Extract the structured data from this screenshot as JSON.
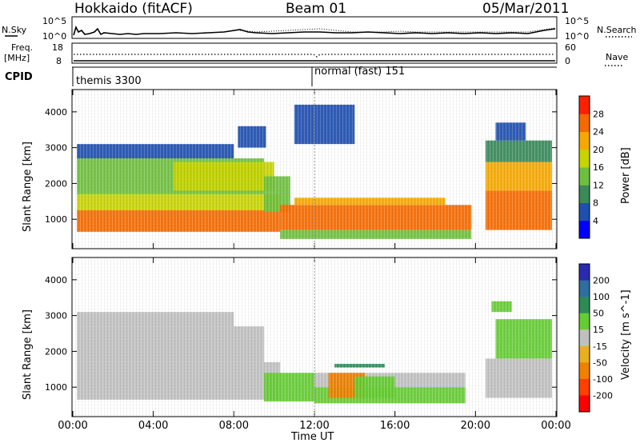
{
  "header": {
    "title": "Hokkaido (fitACF)",
    "beam": "Beam 01",
    "date": "05/Mar/2011"
  },
  "strip_panels": {
    "nsky_label": "N.Sky",
    "nsky_ticks": [
      "10^5",
      "10^0"
    ],
    "nsearch_label": "N.Search",
    "nsearch_ticks": [
      "10^5",
      "10^0"
    ],
    "freq_label_line1": "Freq.",
    "freq_label_line2": "[MHz]",
    "freq_ticks": [
      "18",
      "8"
    ],
    "nave_label": "Nave",
    "nave_ticks": [
      "60",
      "0"
    ],
    "cpid_label": "CPID",
    "cpid_modes": [
      "themis 3300",
      "normal (fast) 151"
    ]
  },
  "colors": {
    "power_scale": [
      "#0000ff",
      "#1f4fb0",
      "#3a8a5a",
      "#6fbf3f",
      "#c7d400",
      "#f5a800",
      "#f56a00",
      "#ff2000"
    ],
    "velocity_scale": [
      "#2a2ab0",
      "#2f6f9f",
      "#2e8b57",
      "#66cc33",
      "#c0c0c0",
      "#e8b020",
      "#f08000",
      "#ff4000",
      "#ff0000"
    ],
    "ground_scatter": "#c0c0c0"
  },
  "chart_data": [
    {
      "type": "heatmap",
      "title": "Power",
      "xlabel": "Time UT",
      "ylabel": "Slant Range [km]",
      "x_ticks": [
        "00:00",
        "04:00",
        "08:00",
        "12:00",
        "16:00",
        "20:00",
        "00:00"
      ],
      "xlim_hours": [
        0,
        24
      ],
      "y_ticks": [
        1000,
        2000,
        3000,
        4000
      ],
      "ylim": [
        200,
        4600
      ],
      "colorbar": {
        "label": "Power [dB]",
        "ticks": [
          4,
          8,
          12,
          16,
          20,
          24,
          28
        ],
        "range": [
          0,
          32
        ]
      },
      "regions": [
        {
          "t0": 0.2,
          "t1": 10.3,
          "r0": 650,
          "r1": 1250,
          "value": 27
        },
        {
          "t0": 0.2,
          "t1": 10.3,
          "r0": 1250,
          "r1": 1700,
          "value": 16
        },
        {
          "t0": 0.2,
          "t1": 9.5,
          "r0": 1700,
          "r1": 2700,
          "value": 12
        },
        {
          "t0": 0.2,
          "t1": 8.0,
          "r0": 2700,
          "r1": 3100,
          "value": 6
        },
        {
          "t0": 5.0,
          "t1": 10.0,
          "r0": 1800,
          "r1": 2600,
          "value": 19
        },
        {
          "t0": 8.2,
          "t1": 9.6,
          "r0": 3000,
          "r1": 3600,
          "value": 5
        },
        {
          "t0": 9.5,
          "t1": 10.8,
          "r0": 1200,
          "r1": 2200,
          "value": 14
        },
        {
          "t0": 10.3,
          "t1": 19.8,
          "r0": 700,
          "r1": 1400,
          "value": 26
        },
        {
          "t0": 11.0,
          "t1": 18.5,
          "r0": 1400,
          "r1": 1600,
          "value": 22
        },
        {
          "t0": 10.3,
          "t1": 19.8,
          "r0": 450,
          "r1": 700,
          "value": 12
        },
        {
          "t0": 20.5,
          "t1": 23.8,
          "r0": 700,
          "r1": 1800,
          "value": 27
        },
        {
          "t0": 20.5,
          "t1": 23.8,
          "r0": 1800,
          "r1": 2600,
          "value": 20
        },
        {
          "t0": 20.5,
          "t1": 23.8,
          "r0": 2600,
          "r1": 3200,
          "value": 10
        },
        {
          "t0": 11.0,
          "t1": 14.0,
          "r0": 3100,
          "r1": 4200,
          "value": 5
        },
        {
          "t0": 21.0,
          "t1": 22.5,
          "r0": 3200,
          "r1": 3700,
          "value": 6
        }
      ]
    },
    {
      "type": "heatmap",
      "title": "Velocity",
      "xlabel": "Time UT",
      "ylabel": "Slant Range [km]",
      "x_ticks": [
        "00:00",
        "04:00",
        "08:00",
        "12:00",
        "16:00",
        "20:00",
        "00:00"
      ],
      "xlim_hours": [
        0,
        24
      ],
      "y_ticks": [
        1000,
        2000,
        3000,
        4000
      ],
      "ylim": [
        200,
        4600
      ],
      "colorbar": {
        "label": "Velocity [m s^-1]",
        "ticks": [
          200,
          100,
          50,
          15,
          -15,
          -50,
          -100,
          -200
        ],
        "range": [
          -250,
          250
        ]
      },
      "regions": [
        {
          "t0": 0.2,
          "t1": 10.3,
          "r0": 650,
          "r1": 1700,
          "value": 0
        },
        {
          "t0": 0.2,
          "t1": 9.5,
          "r0": 1700,
          "r1": 2700,
          "value": 0
        },
        {
          "t0": 0.2,
          "t1": 8.0,
          "r0": 2700,
          "r1": 3100,
          "value": 0
        },
        {
          "t0": 9.5,
          "t1": 12.0,
          "r0": 600,
          "r1": 1400,
          "value": 35
        },
        {
          "t0": 12.0,
          "t1": 19.5,
          "r0": 1000,
          "r1": 1400,
          "value": 0
        },
        {
          "t0": 12.0,
          "t1": 19.5,
          "r0": 550,
          "r1": 1000,
          "value": 40
        },
        {
          "t0": 12.7,
          "t1": 14.5,
          "r0": 700,
          "r1": 1400,
          "value": -60
        },
        {
          "t0": 14.0,
          "t1": 16.0,
          "r0": 700,
          "r1": 1300,
          "value": 40
        },
        {
          "t0": 13.0,
          "t1": 15.5,
          "r0": 1550,
          "r1": 1650,
          "value": 60
        },
        {
          "t0": 20.5,
          "t1": 23.8,
          "r0": 700,
          "r1": 1800,
          "value": 0
        },
        {
          "t0": 21.0,
          "t1": 23.8,
          "r0": 1800,
          "r1": 2900,
          "value": 35
        },
        {
          "t0": 20.8,
          "t1": 21.8,
          "r0": 3100,
          "r1": 3400,
          "value": 40
        }
      ]
    }
  ]
}
